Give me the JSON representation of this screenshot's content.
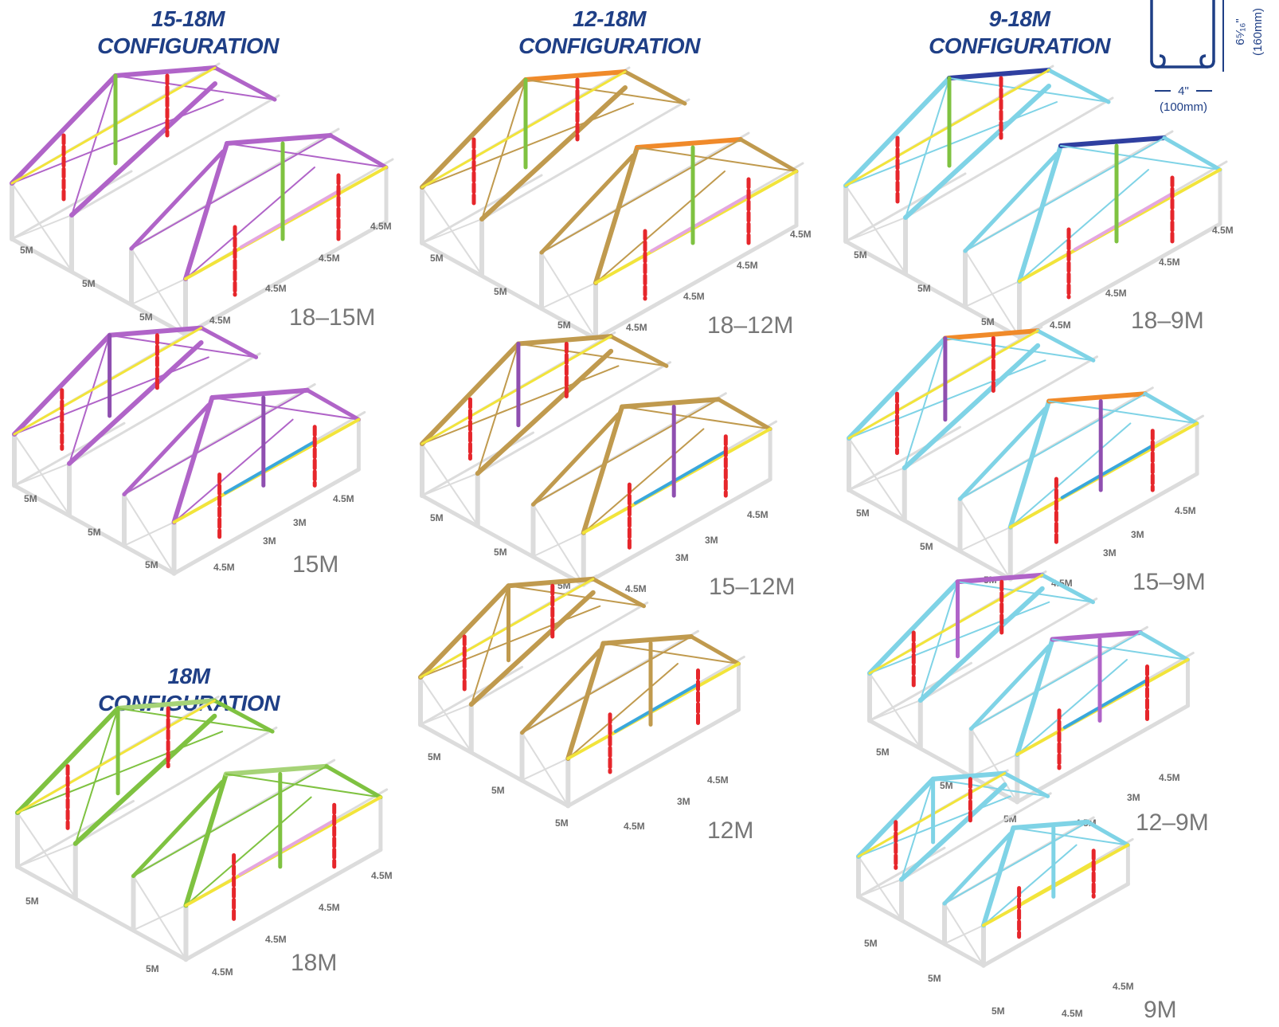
{
  "colors": {
    "frame": "#dcdcdc",
    "purple": "#b064c8",
    "violet": "#8f4fb0",
    "green": "#7fc241",
    "light_green": "#a6d377",
    "red": "#e6262b",
    "yellow": "#f2e43a",
    "pink": "#e4a6e0",
    "orange": "#f08a2a",
    "tan": "#c09a4e",
    "navy": "#2f3fa0",
    "cyan": "#7fd3e6",
    "blue": "#39a7dc",
    "heading": "#1f3f86"
  },
  "headings": [
    {
      "line1": "15-18M",
      "line2": "CONFIGURATION"
    },
    {
      "line1": "12-18M",
      "line2": "CONFIGURATION"
    },
    {
      "line1": "9-18M",
      "line2": "CONFIGURATION"
    },
    {
      "line1": "18M",
      "line2": "CONFIGURATION"
    }
  ],
  "profile": {
    "width": "4\"",
    "width_metric": "(100mm)",
    "height": "6⁵⁄₁₆\"",
    "height_metric": "(160mm)"
  },
  "frames": [
    {
      "label": "18–15M",
      "dims": [
        "5M",
        "5M",
        "5M",
        "4.5M",
        "4.5M",
        "4.5M",
        "4.5M"
      ]
    },
    {
      "label": "15M",
      "dims": [
        "5M",
        "5M",
        "5M",
        "4.5M",
        "3M",
        "3M",
        "4.5M"
      ]
    },
    {
      "label": "18M",
      "dims": [
        "5M",
        "5M",
        "4.5M",
        "4.5M",
        "4.5M",
        "4.5M"
      ]
    },
    {
      "label": "18–12M",
      "dims": [
        "5M",
        "5M",
        "5M",
        "4.5M",
        "4.5M",
        "4.5M",
        "4.5M"
      ]
    },
    {
      "label": "15–12M",
      "dims": [
        "5M",
        "5M",
        "5M",
        "4.5M",
        "3M",
        "3M",
        "4.5M"
      ]
    },
    {
      "label": "12M",
      "dims": [
        "5M",
        "5M",
        "5M",
        "4.5M",
        "3M",
        "4.5M"
      ]
    },
    {
      "label": "18–9M",
      "dims": [
        "5M",
        "5M",
        "5M",
        "4.5M",
        "4.5M",
        "4.5M",
        "4.5M"
      ]
    },
    {
      "label": "15–9M",
      "dims": [
        "5M",
        "5M",
        "5M",
        "4.5M",
        "3M",
        "3M",
        "4.5M"
      ]
    },
    {
      "label": "12–9M",
      "dims": [
        "5M",
        "5M",
        "5M",
        "4.5M",
        "3M",
        "4.5M"
      ]
    },
    {
      "label": "9M",
      "dims": [
        "5M",
        "5M",
        "5M",
        "4.5M",
        "4.5M"
      ]
    }
  ]
}
